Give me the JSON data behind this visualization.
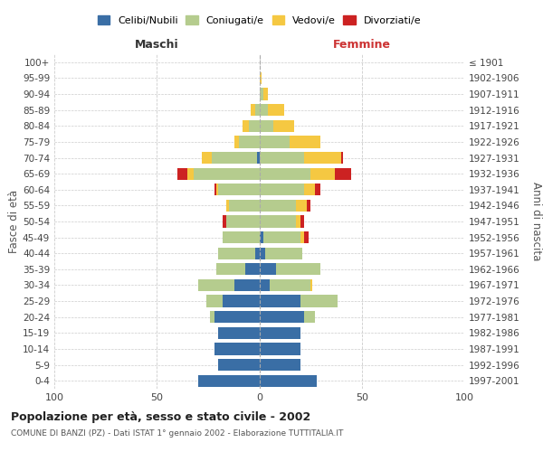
{
  "age_groups": [
    "0-4",
    "5-9",
    "10-14",
    "15-19",
    "20-24",
    "25-29",
    "30-34",
    "35-39",
    "40-44",
    "45-49",
    "50-54",
    "55-59",
    "60-64",
    "65-69",
    "70-74",
    "75-79",
    "80-84",
    "85-89",
    "90-94",
    "95-99",
    "100+"
  ],
  "birth_years": [
    "1997-2001",
    "1992-1996",
    "1987-1991",
    "1982-1986",
    "1977-1981",
    "1972-1976",
    "1967-1971",
    "1962-1966",
    "1957-1961",
    "1952-1956",
    "1947-1951",
    "1942-1946",
    "1937-1941",
    "1932-1936",
    "1927-1931",
    "1922-1926",
    "1917-1921",
    "1912-1916",
    "1907-1911",
    "1902-1906",
    "≤ 1901"
  ],
  "male": {
    "celibi": [
      30,
      20,
      22,
      20,
      22,
      18,
      12,
      7,
      2,
      0,
      0,
      0,
      0,
      0,
      1,
      0,
      0,
      0,
      0,
      0,
      0
    ],
    "coniugati": [
      0,
      0,
      0,
      0,
      2,
      8,
      18,
      14,
      18,
      18,
      16,
      15,
      20,
      32,
      22,
      10,
      5,
      2,
      0,
      0,
      0
    ],
    "vedovi": [
      0,
      0,
      0,
      0,
      0,
      0,
      0,
      0,
      0,
      0,
      0,
      1,
      1,
      3,
      5,
      2,
      3,
      2,
      0,
      0,
      0
    ],
    "divorziati": [
      0,
      0,
      0,
      0,
      0,
      0,
      0,
      0,
      0,
      0,
      2,
      0,
      1,
      5,
      0,
      0,
      0,
      0,
      0,
      0,
      0
    ]
  },
  "female": {
    "nubili": [
      28,
      20,
      20,
      20,
      22,
      20,
      5,
      8,
      3,
      2,
      0,
      0,
      0,
      0,
      0,
      0,
      0,
      0,
      0,
      0,
      0
    ],
    "coniugate": [
      0,
      0,
      0,
      0,
      5,
      18,
      20,
      22,
      18,
      18,
      18,
      18,
      22,
      25,
      22,
      15,
      7,
      4,
      2,
      0,
      0
    ],
    "vedove": [
      0,
      0,
      0,
      0,
      0,
      0,
      1,
      0,
      0,
      2,
      2,
      5,
      5,
      12,
      18,
      15,
      10,
      8,
      2,
      1,
      0
    ],
    "divorziate": [
      0,
      0,
      0,
      0,
      0,
      0,
      0,
      0,
      0,
      2,
      2,
      2,
      3,
      8,
      1,
      0,
      0,
      0,
      0,
      0,
      0
    ]
  },
  "colors": {
    "celibi_nubili": "#3a6ea5",
    "coniugati": "#b5cc8e",
    "vedovi": "#f5c842",
    "divorziati": "#cc2222"
  },
  "title": "Popolazione per età, sesso e stato civile - 2002",
  "subtitle": "COMUNE DI BANZI (PZ) - Dati ISTAT 1° gennaio 2002 - Elaborazione TUTTITALIA.IT",
  "ylabel_left": "Fasce di età",
  "ylabel_right": "Anni di nascita",
  "legend_labels": [
    "Celibi/Nubili",
    "Coniugati/e",
    "Vedovi/e",
    "Divorziati/e"
  ],
  "maschi_label": "Maschi",
  "femmine_label": "Femmine",
  "background_color": "#ffffff",
  "grid_color": "#cccccc"
}
